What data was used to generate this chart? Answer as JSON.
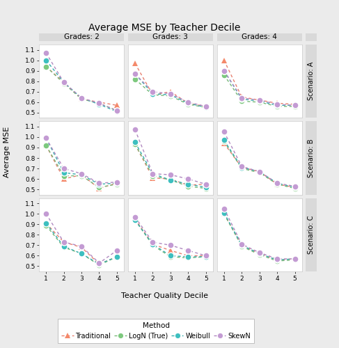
{
  "title": "Average MSE by Teacher Decile",
  "xlabel": "Teacher Quality Decile",
  "ylabel": "Average MSE",
  "col_labels": [
    "Grades: 2",
    "Grades: 3",
    "Grades: 4"
  ],
  "row_labels": [
    "Scenario: A",
    "Scenario: B",
    "Scenario: C"
  ],
  "x": [
    1,
    2,
    3,
    4,
    5
  ],
  "ylim": [
    0.45,
    1.15
  ],
  "yticks": [
    0.5,
    0.6,
    0.7,
    0.8,
    0.9,
    1.0,
    1.1
  ],
  "methods": [
    "Traditional",
    "LogN (True)",
    "Weibull",
    "SkewN"
  ],
  "colors": [
    "#F4896B",
    "#7DC97E",
    "#3DBFBF",
    "#C39BD3"
  ],
  "line_colors": [
    "#E88070",
    "#78B878",
    "#38AEAE",
    "#B088C0"
  ],
  "markers": [
    "^",
    "o",
    "o",
    "o"
  ],
  "data": {
    "A": {
      "Grades: 2": {
        "Traditional": [
          0.94,
          0.79,
          0.63,
          0.6,
          0.57
        ],
        "LogN (True)": [
          0.94,
          0.78,
          0.63,
          0.59,
          0.52
        ],
        "Weibull": [
          1.0,
          0.79,
          0.64,
          0.58,
          0.51
        ],
        "SkewN": [
          1.07,
          0.79,
          0.64,
          0.59,
          0.52
        ]
      },
      "Grades: 3": {
        "Traditional": [
          0.97,
          0.67,
          0.7,
          0.59,
          0.56
        ],
        "LogN (True)": [
          0.82,
          0.67,
          0.66,
          0.58,
          0.55
        ],
        "Weibull": [
          0.87,
          0.68,
          0.67,
          0.59,
          0.55
        ],
        "SkewN": [
          0.87,
          0.7,
          0.68,
          0.6,
          0.56
        ]
      },
      "Grades: 4": {
        "Traditional": [
          1.0,
          0.65,
          0.62,
          0.59,
          0.58
        ],
        "LogN (True)": [
          0.86,
          0.61,
          0.6,
          0.56,
          0.56
        ],
        "Weibull": [
          0.9,
          0.63,
          0.61,
          0.57,
          0.57
        ],
        "SkewN": [
          0.9,
          0.64,
          0.62,
          0.58,
          0.57
        ]
      }
    },
    "B": {
      "Grades: 2": {
        "Traditional": [
          0.92,
          0.6,
          0.64,
          0.51,
          0.56
        ],
        "LogN (True)": [
          0.92,
          0.63,
          0.63,
          0.52,
          0.55
        ],
        "Weibull": [
          0.99,
          0.66,
          0.64,
          0.55,
          0.56
        ],
        "SkewN": [
          0.99,
          0.7,
          0.65,
          0.56,
          0.57
        ]
      },
      "Grades: 3": {
        "Traditional": [
          0.93,
          0.61,
          0.6,
          0.54,
          0.55
        ],
        "LogN (True)": [
          0.93,
          0.63,
          0.59,
          0.53,
          0.51
        ],
        "Weibull": [
          0.95,
          0.65,
          0.59,
          0.55,
          0.52
        ],
        "SkewN": [
          1.07,
          0.65,
          0.64,
          0.6,
          0.55
        ]
      },
      "Grades: 4": {
        "Traditional": [
          0.94,
          0.71,
          0.67,
          0.55,
          0.52
        ],
        "LogN (True)": [
          0.96,
          0.7,
          0.66,
          0.55,
          0.51
        ],
        "Weibull": [
          0.97,
          0.71,
          0.67,
          0.56,
          0.52
        ],
        "SkewN": [
          1.05,
          0.72,
          0.67,
          0.56,
          0.53
        ]
      }
    },
    "C": {
      "Grades: 2": {
        "Traditional": [
          0.91,
          0.73,
          0.68,
          0.52,
          0.59
        ],
        "LogN (True)": [
          0.89,
          0.68,
          0.62,
          0.51,
          0.59
        ],
        "Weibull": [
          0.91,
          0.69,
          0.62,
          0.52,
          0.59
        ],
        "SkewN": [
          1.0,
          0.73,
          0.69,
          0.53,
          0.65
        ]
      },
      "Grades: 3": {
        "Traditional": [
          0.95,
          0.71,
          0.65,
          0.6,
          0.6
        ],
        "LogN (True)": [
          0.94,
          0.7,
          0.59,
          0.58,
          0.59
        ],
        "Weibull": [
          0.94,
          0.71,
          0.6,
          0.59,
          0.59
        ],
        "SkewN": [
          0.97,
          0.73,
          0.7,
          0.65,
          0.6
        ]
      },
      "Grades: 4": {
        "Traditional": [
          1.0,
          0.7,
          0.62,
          0.56,
          0.57
        ],
        "LogN (True)": [
          1.0,
          0.69,
          0.61,
          0.55,
          0.56
        ],
        "Weibull": [
          1.01,
          0.7,
          0.62,
          0.56,
          0.57
        ],
        "SkewN": [
          1.05,
          0.71,
          0.63,
          0.57,
          0.57
        ]
      }
    }
  },
  "bg_color": "#EBEBEB",
  "panel_bg": "#FFFFFF",
  "strip_bg": "#D9D9D9",
  "grid_color": "#FFFFFF",
  "border_color": "#CCCCCC"
}
